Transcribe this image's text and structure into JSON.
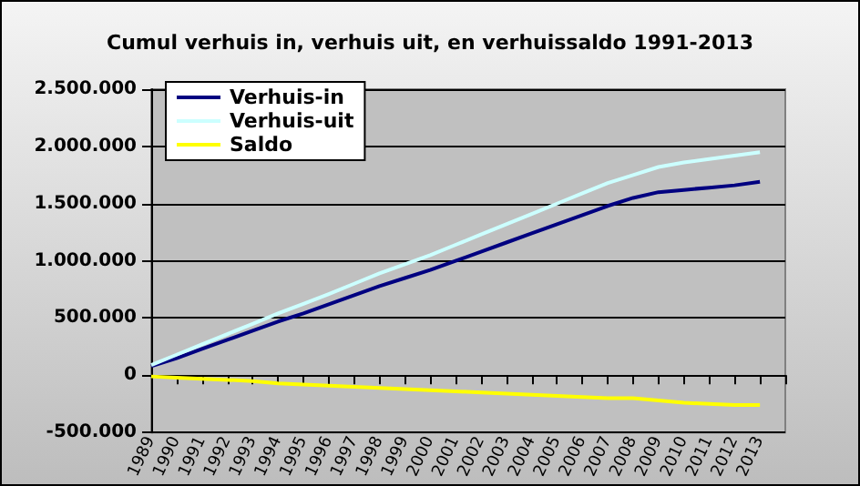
{
  "chart_data": {
    "type": "line",
    "title": "Cumul verhuis in, verhuis uit, en verhuissaldo 1991-2013",
    "categories": [
      "1989",
      "1990",
      "1991",
      "1992",
      "1993",
      "1994",
      "1995",
      "1996",
      "1997",
      "1998",
      "1999",
      "2000",
      "2001",
      "2002",
      "2003",
      "2004",
      "2005",
      "2006",
      "2007",
      "2008",
      "2009",
      "2010",
      "2011",
      "2012",
      "2013",
      null
    ],
    "series": [
      {
        "name": "Verhuis-in",
        "color": "#000080",
        "values": [
          80000,
          150000,
          230000,
          310000,
          390000,
          470000,
          540000,
          620000,
          700000,
          780000,
          850000,
          920000,
          1000000,
          1080000,
          1160000,
          1240000,
          1320000,
          1400000,
          1480000,
          1550000,
          1600000,
          1620000,
          1640000,
          1660000,
          1690000,
          null
        ]
      },
      {
        "name": "Verhuis-uit",
        "color": "#ccffff",
        "values": [
          90000,
          180000,
          270000,
          360000,
          450000,
          540000,
          625000,
          710000,
          800000,
          890000,
          970000,
          1050000,
          1140000,
          1230000,
          1320000,
          1410000,
          1500000,
          1590000,
          1680000,
          1750000,
          1820000,
          1860000,
          1890000,
          1920000,
          1950000,
          null
        ]
      },
      {
        "name": "Saldo",
        "color": "#ffff00",
        "values": [
          -10000,
          -20000,
          -30000,
          -40000,
          -50000,
          -70000,
          -80000,
          -90000,
          -100000,
          -110000,
          -120000,
          -130000,
          -140000,
          -150000,
          -160000,
          -170000,
          -180000,
          -190000,
          -200000,
          -200000,
          -220000,
          -240000,
          -250000,
          -260000,
          -260000,
          null
        ]
      }
    ],
    "ylim": [
      -500000,
      2500000
    ],
    "yticks": [
      {
        "value": -500000,
        "label": "-500.000"
      },
      {
        "value": 0,
        "label": "0"
      },
      {
        "value": 500000,
        "label": "500.000"
      },
      {
        "value": 1000000,
        "label": "1.000.000"
      },
      {
        "value": 1500000,
        "label": "1.500.000"
      },
      {
        "value": 2000000,
        "label": "2.000.000"
      },
      {
        "value": 2500000,
        "label": "2.500.000"
      }
    ],
    "grid": "y",
    "legend": "top left",
    "marker": "none",
    "line_style": "solid"
  }
}
